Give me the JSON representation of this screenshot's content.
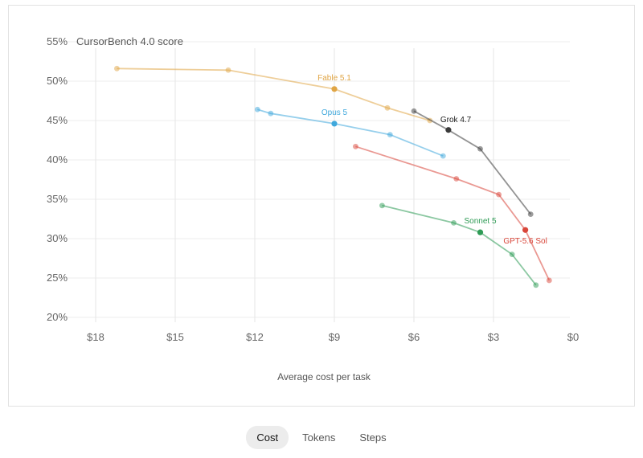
{
  "chart_data": {
    "type": "line",
    "title": "CursorBench 4.0 score",
    "xlabel": "Average cost per task",
    "ylabel": "CursorBench 4.0 score",
    "xlim": [
      18,
      0
    ],
    "ylim": [
      20,
      55
    ],
    "x_ticks": [
      "$18",
      "$15",
      "$12",
      "$9",
      "$6",
      "$3",
      "$0"
    ],
    "x_tick_values": [
      18,
      15,
      12,
      9,
      6,
      3,
      0
    ],
    "y_ticks": [
      "20%",
      "25%",
      "30%",
      "35%",
      "40%",
      "45%",
      "50%",
      "55%"
    ],
    "y_tick_values": [
      20,
      25,
      30,
      35,
      40,
      45,
      50,
      55
    ],
    "grid": "vertical",
    "series": [
      {
        "name": "Fable 5.1",
        "color": "#e0a545",
        "points": [
          [
            17.2,
            51.6
          ],
          [
            13.0,
            51.4
          ],
          [
            9.0,
            49.0
          ],
          [
            7.0,
            46.6
          ],
          [
            5.4,
            45.0
          ]
        ],
        "highlight_index": 2
      },
      {
        "name": "Opus 5",
        "color": "#3fa8dc",
        "points": [
          [
            11.9,
            46.4
          ],
          [
            11.4,
            45.9
          ],
          [
            9.0,
            44.6
          ],
          [
            6.9,
            43.2
          ],
          [
            4.9,
            40.5
          ]
        ],
        "highlight_index": 2
      },
      {
        "name": "Grok 4.7",
        "color": "#3a3a3a",
        "points": [
          [
            6.0,
            46.2
          ],
          [
            4.7,
            43.8
          ],
          [
            3.5,
            41.4
          ],
          [
            1.6,
            33.1
          ]
        ],
        "highlight_index": 1
      },
      {
        "name": "GPT-5.6 Sol",
        "color": "#d9463a",
        "points": [
          [
            8.2,
            41.7
          ],
          [
            4.4,
            37.6
          ],
          [
            2.8,
            35.6
          ],
          [
            1.8,
            31.1
          ],
          [
            0.9,
            24.7
          ]
        ],
        "highlight_index": 3
      },
      {
        "name": "Sonnet 5",
        "color": "#2e9b55",
        "points": [
          [
            7.2,
            34.2
          ],
          [
            4.5,
            32.0
          ],
          [
            3.5,
            30.8
          ],
          [
            2.3,
            28.0
          ],
          [
            1.4,
            24.1
          ]
        ],
        "highlight_index": 2
      }
    ]
  },
  "tabs": [
    {
      "label": "Cost",
      "active": true
    },
    {
      "label": "Tokens",
      "active": false
    },
    {
      "label": "Steps",
      "active": false
    }
  ]
}
